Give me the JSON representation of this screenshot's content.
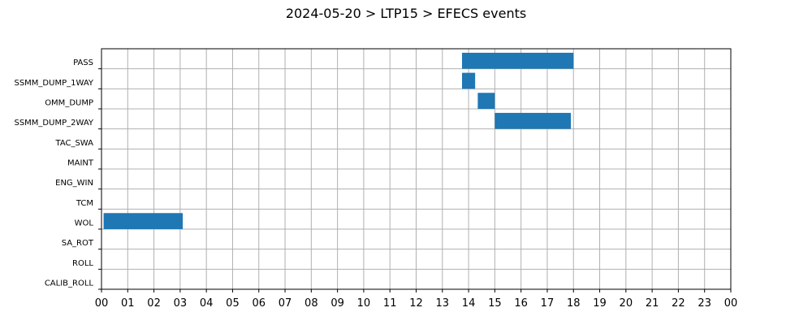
{
  "page": {
    "title": "2024-05-20 > LTP15 > EFECS events"
  },
  "chart_data": {
    "type": "bar",
    "orientation": "horizontal-timeline",
    "title": "2024-05-20 > LTP15 > EFECS events",
    "xlabel": "",
    "ylabel": "",
    "xlim": [
      0,
      24
    ],
    "x_ticks": [
      "00",
      "01",
      "02",
      "03",
      "04",
      "05",
      "06",
      "07",
      "08",
      "09",
      "10",
      "11",
      "12",
      "13",
      "14",
      "15",
      "16",
      "17",
      "18",
      "19",
      "20",
      "21",
      "22",
      "23",
      "00"
    ],
    "categories": [
      "PASS",
      "SSMM_DUMP_1WAY",
      "OMM_DUMP",
      "SSMM_DUMP_2WAY",
      "TAC_SWA",
      "MAINT",
      "ENG_WIN",
      "TCM",
      "WOL",
      "SA_ROT",
      "ROLL",
      "CALIB_ROLL"
    ],
    "grid": true,
    "bar_color": "#1f77b4",
    "events": [
      {
        "category": "PASS",
        "start": 13.75,
        "end": 18.0
      },
      {
        "category": "SSMM_DUMP_1WAY",
        "start": 13.75,
        "end": 14.25
      },
      {
        "category": "OMM_DUMP",
        "start": 14.35,
        "end": 15.0
      },
      {
        "category": "SSMM_DUMP_2WAY",
        "start": 15.0,
        "end": 17.9
      },
      {
        "category": "WOL",
        "start": 0.08,
        "end": 3.1
      }
    ]
  }
}
